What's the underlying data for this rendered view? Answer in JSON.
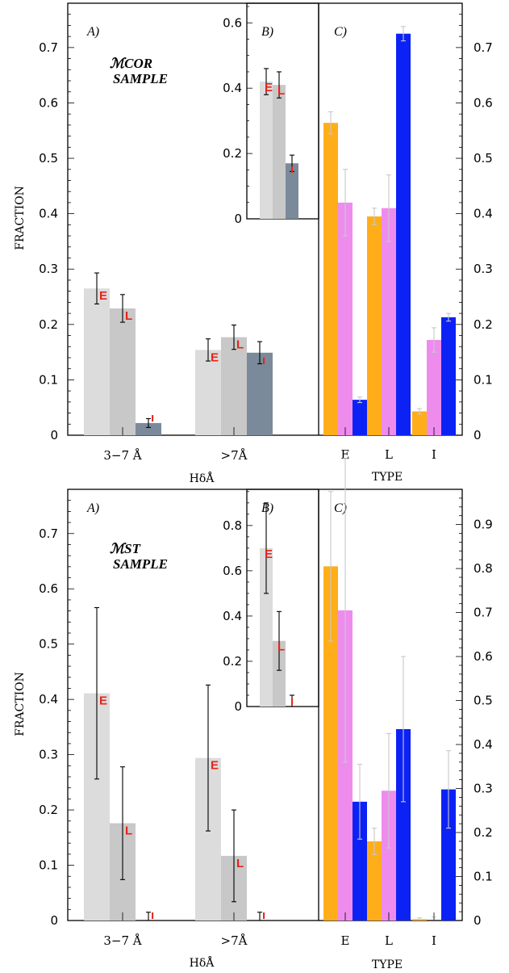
{
  "figures": [
    {
      "sample_label": [
        "ℳCOR",
        "SAMPLE"
      ],
      "panelA": {
        "label": "A)",
        "ylabel": "FRACTION",
        "xlabel": "HδÅ",
        "ylim": [
          0,
          0.78
        ],
        "yticks": [
          "0",
          "0.1",
          "0.2",
          "0.3",
          "0.4",
          "0.5",
          "0.6",
          "0.7"
        ]
      },
      "panelB": {
        "label": "B)",
        "ylim": [
          0,
          0.66
        ],
        "yticks": [
          "0",
          "0.2",
          "0.4",
          "0.6"
        ]
      },
      "panelC": {
        "label": "C)",
        "xlabel": "TYPE",
        "ylim": [
          0,
          0.78
        ],
        "yticks": [
          "0",
          "0.1",
          "0.2",
          "0.3",
          "0.4",
          "0.5",
          "0.6",
          "0.7"
        ]
      }
    },
    {
      "sample_label": [
        "ℳST",
        "SAMPLE"
      ],
      "panelA": {
        "label": "A)",
        "ylabel": "FRACTION",
        "xlabel": "HδÅ",
        "ylim": [
          0,
          0.78
        ],
        "yticks": [
          "0",
          "0.1",
          "0.2",
          "0.3",
          "0.4",
          "0.5",
          "0.6",
          "0.7"
        ]
      },
      "panelB": {
        "label": "B)",
        "ylim": [
          0,
          0.96
        ],
        "yticks": [
          "0",
          "0.2",
          "0.4",
          "0.6",
          "0.8"
        ]
      },
      "panelC": {
        "label": "C)",
        "xlabel": "TYPE",
        "ylim": [
          0,
          0.98
        ],
        "yticks": [
          "0",
          "0.1",
          "0.2",
          "0.3",
          "0.4",
          "0.5",
          "0.6",
          "0.7",
          "0.8",
          "0.9"
        ]
      }
    }
  ],
  "chart_data": [
    {
      "type": "bar",
      "panel": "top-A",
      "xlabel": "HδÅ",
      "ylabel": "FRACTION",
      "categories": [
        "3−7 Å",
        ">7Å"
      ],
      "series": [
        {
          "name": "E",
          "values": [
            0.265,
            0.154
          ],
          "errors": [
            0.028,
            0.02
          ]
        },
        {
          "name": "L",
          "values": [
            0.229,
            0.177
          ],
          "errors": [
            0.025,
            0.022
          ]
        },
        {
          "name": "I",
          "values": [
            0.022,
            0.149
          ],
          "errors": [
            0.008,
            0.02
          ]
        }
      ],
      "colors": [
        "#dcdcdc",
        "#c8c8c8",
        "#7a8a9a"
      ],
      "ylim": [
        0,
        0.78
      ]
    },
    {
      "type": "bar",
      "panel": "top-B",
      "series": [
        {
          "name": "E",
          "values": [
            0.42
          ],
          "errors": [
            0.04
          ]
        },
        {
          "name": "L",
          "values": [
            0.41
          ],
          "errors": [
            0.04
          ]
        },
        {
          "name": "I",
          "values": [
            0.17
          ],
          "errors": [
            0.025
          ]
        }
      ],
      "colors": [
        "#dcdcdc",
        "#c8c8c8",
        "#7a8a9a"
      ],
      "ylim": [
        0,
        0.66
      ]
    },
    {
      "type": "bar",
      "panel": "top-C",
      "xlabel": "TYPE",
      "categories": [
        "E",
        "L",
        "I"
      ],
      "series": [
        {
          "values": [
            0.564,
            0.395,
            0.043
          ],
          "errors": [
            0.02,
            0.015,
            0.005
          ]
        },
        {
          "values": [
            0.42,
            0.41,
            0.172
          ],
          "errors": [
            0.06,
            0.06,
            0.022
          ]
        },
        {
          "values": [
            0.064,
            0.725,
            0.213
          ],
          "errors": [
            0.005,
            0.013,
            0.007
          ]
        }
      ],
      "colors": [
        "#ffae1a",
        "#ee8cee",
        "#0c22f5"
      ],
      "ylim": [
        0,
        0.78
      ]
    },
    {
      "type": "bar",
      "panel": "bottom-A",
      "xlabel": "HδÅ",
      "ylabel": "FRACTION",
      "categories": [
        "3−7 Å",
        ">7Å"
      ],
      "series": [
        {
          "name": "E",
          "values": [
            0.411,
            0.294
          ],
          "errors": [
            0.155,
            0.132
          ]
        },
        {
          "name": "L",
          "values": [
            0.176,
            0.117
          ],
          "errors": [
            0.102,
            0.083
          ]
        },
        {
          "name": "I",
          "values": [
            0.0,
            0.0
          ],
          "errors": [
            0.015,
            0.015
          ]
        }
      ],
      "colors": [
        "#dcdcdc",
        "#c8c8c8",
        "#7a8a9a"
      ],
      "ylim": [
        0,
        0.78
      ]
    },
    {
      "type": "bar",
      "panel": "bottom-B",
      "series": [
        {
          "name": "E",
          "values": [
            0.7
          ],
          "errors": [
            0.2
          ]
        },
        {
          "name": "L",
          "values": [
            0.29
          ],
          "errors": [
            0.13
          ]
        },
        {
          "name": "I",
          "values": [
            0.0
          ],
          "errors": [
            0.05
          ]
        }
      ],
      "colors": [
        "#dcdcdc",
        "#c8c8c8",
        "#7a8a9a"
      ],
      "ylim": [
        0,
        0.96
      ]
    },
    {
      "type": "bar",
      "panel": "bottom-C",
      "xlabel": "TYPE",
      "categories": [
        "E",
        "L",
        "I"
      ],
      "series": [
        {
          "values": [
            0.805,
            0.18,
            0.003
          ],
          "errors": [
            0.17,
            0.03,
            0.003
          ]
        },
        {
          "values": [
            0.705,
            0.295,
            0.0
          ],
          "errors": [
            0.345,
            0.13,
            0.008
          ]
        },
        {
          "values": [
            0.27,
            0.435,
            0.298
          ],
          "errors": [
            0.085,
            0.165,
            0.088
          ]
        }
      ],
      "colors": [
        "#ffae1a",
        "#ee8cee",
        "#0c22f5"
      ],
      "ylim": [
        0,
        0.98
      ]
    }
  ]
}
